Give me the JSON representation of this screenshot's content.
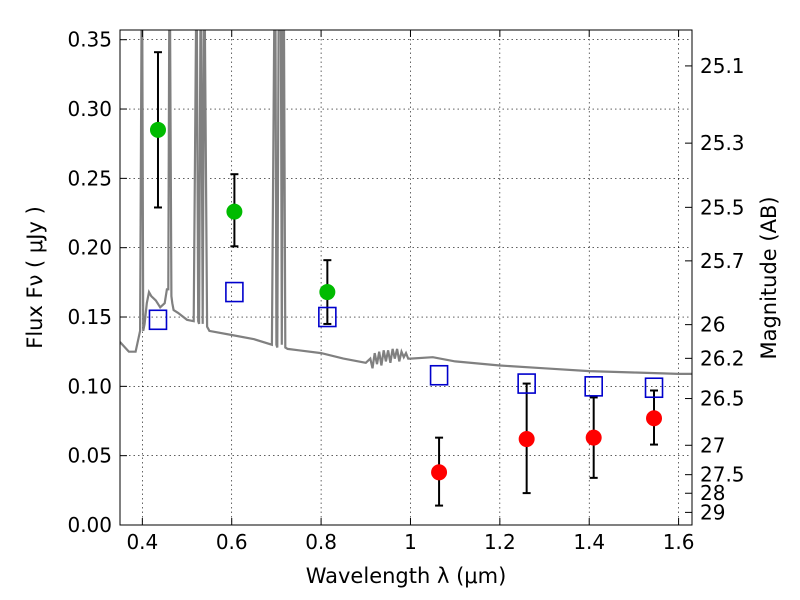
{
  "chart_data": {
    "type": "scatter",
    "title": "",
    "xlabel": "Wavelength  λ (μm)",
    "ylabel": "Flux  Fν  ( μJy )",
    "y2label": "Magnitude (AB)",
    "xlim": [
      0.35,
      1.63
    ],
    "ylim": [
      0.0,
      0.357
    ],
    "grid": true,
    "x_ticks": [
      0.4,
      0.6,
      0.8,
      1.0,
      1.2,
      1.4,
      1.6
    ],
    "x_tick_labels": [
      "0.4",
      "0.6",
      "0.8",
      "1",
      "1.2",
      "1.4",
      "1.6"
    ],
    "y_ticks": [
      0.0,
      0.05,
      0.1,
      0.15,
      0.2,
      0.25,
      0.3,
      0.35
    ],
    "y_tick_labels": [
      "0.00",
      "0.05",
      "0.10",
      "0.15",
      "0.20",
      "0.25",
      "0.30",
      "0.35"
    ],
    "mag_ticks": [
      {
        "label": "25.1",
        "flux": 0.3311
      },
      {
        "label": "25.3",
        "flux": 0.2754
      },
      {
        "label": "25.5",
        "flux": 0.2291
      },
      {
        "label": "25.7",
        "flux": 0.1905
      },
      {
        "label": "26",
        "flux": 0.1445
      },
      {
        "label": "26.2",
        "flux": 0.1202
      },
      {
        "label": "26.5",
        "flux": 0.0912
      },
      {
        "label": "27",
        "flux": 0.0575
      },
      {
        "label": "27.5",
        "flux": 0.0363
      },
      {
        "label": "28",
        "flux": 0.0229
      },
      {
        "label": "29",
        "flux": 0.0091
      }
    ],
    "series": [
      {
        "color": "#00bb00",
        "marker": "circle",
        "x": [
          0.435,
          0.606,
          0.814
        ],
        "y": [
          0.285,
          0.226,
          0.168
        ],
        "yerr_low": [
          0.229,
          0.201,
          0.145
        ],
        "yerr_high": [
          0.341,
          0.253,
          0.191
        ]
      },
      {
        "color": "#ff0000",
        "marker": "circle",
        "x": [
          1.064,
          1.26,
          1.41,
          1.545
        ],
        "y": [
          0.038,
          0.062,
          0.063,
          0.077
        ],
        "yerr_low": [
          0.014,
          0.023,
          0.034,
          0.058
        ],
        "yerr_high": [
          0.063,
          0.102,
          0.092,
          0.097
        ]
      },
      {
        "color": "#0000cc",
        "marker": "open-square",
        "x": [
          0.435,
          0.606,
          0.814,
          1.064,
          1.26,
          1.41,
          1.545
        ],
        "y": [
          0.148,
          0.168,
          0.15,
          0.108,
          0.102,
          0.1,
          0.099
        ]
      }
    ],
    "model_spectrum": {
      "color": "#808080",
      "x": [
        0.35,
        0.37,
        0.385,
        0.395,
        0.398,
        0.4,
        0.402,
        0.405,
        0.41,
        0.415,
        0.42,
        0.43,
        0.44,
        0.45,
        0.455,
        0.458,
        0.46,
        0.462,
        0.465,
        0.467,
        0.47,
        0.48,
        0.5,
        0.515,
        0.52,
        0.522,
        0.525,
        0.527,
        0.53,
        0.532,
        0.535,
        0.538,
        0.54,
        0.545,
        0.55,
        0.6,
        0.65,
        0.69,
        0.695,
        0.698,
        0.7,
        0.702,
        0.705,
        0.71,
        0.712,
        0.715,
        0.717,
        0.72,
        0.725,
        0.75,
        0.8,
        0.85,
        0.9,
        0.91,
        0.915,
        0.92,
        0.925,
        0.93,
        0.935,
        0.94,
        0.945,
        0.95,
        0.955,
        0.96,
        0.965,
        0.97,
        0.975,
        0.98,
        0.985,
        0.99,
        0.995,
        1.0,
        1.05,
        1.1,
        1.2,
        1.3,
        1.4,
        1.5,
        1.6,
        1.63
      ],
      "y": [
        0.132,
        0.125,
        0.125,
        0.14,
        0.357,
        0.357,
        0.14,
        0.145,
        0.16,
        0.168,
        0.165,
        0.162,
        0.157,
        0.16,
        0.17,
        0.17,
        0.357,
        0.357,
        0.165,
        0.16,
        0.155,
        0.153,
        0.148,
        0.147,
        0.357,
        0.357,
        0.147,
        0.145,
        0.357,
        0.357,
        0.145,
        0.357,
        0.357,
        0.143,
        0.14,
        0.137,
        0.134,
        0.13,
        0.357,
        0.357,
        0.13,
        0.128,
        0.357,
        0.357,
        0.13,
        0.357,
        0.357,
        0.128,
        0.127,
        0.126,
        0.124,
        0.12,
        0.117,
        0.12,
        0.113,
        0.124,
        0.116,
        0.125,
        0.115,
        0.126,
        0.118,
        0.126,
        0.117,
        0.127,
        0.12,
        0.127,
        0.118,
        0.125,
        0.121,
        0.124,
        0.12,
        0.12,
        0.121,
        0.118,
        0.115,
        0.113,
        0.111,
        0.11,
        0.109,
        0.109
      ]
    }
  }
}
